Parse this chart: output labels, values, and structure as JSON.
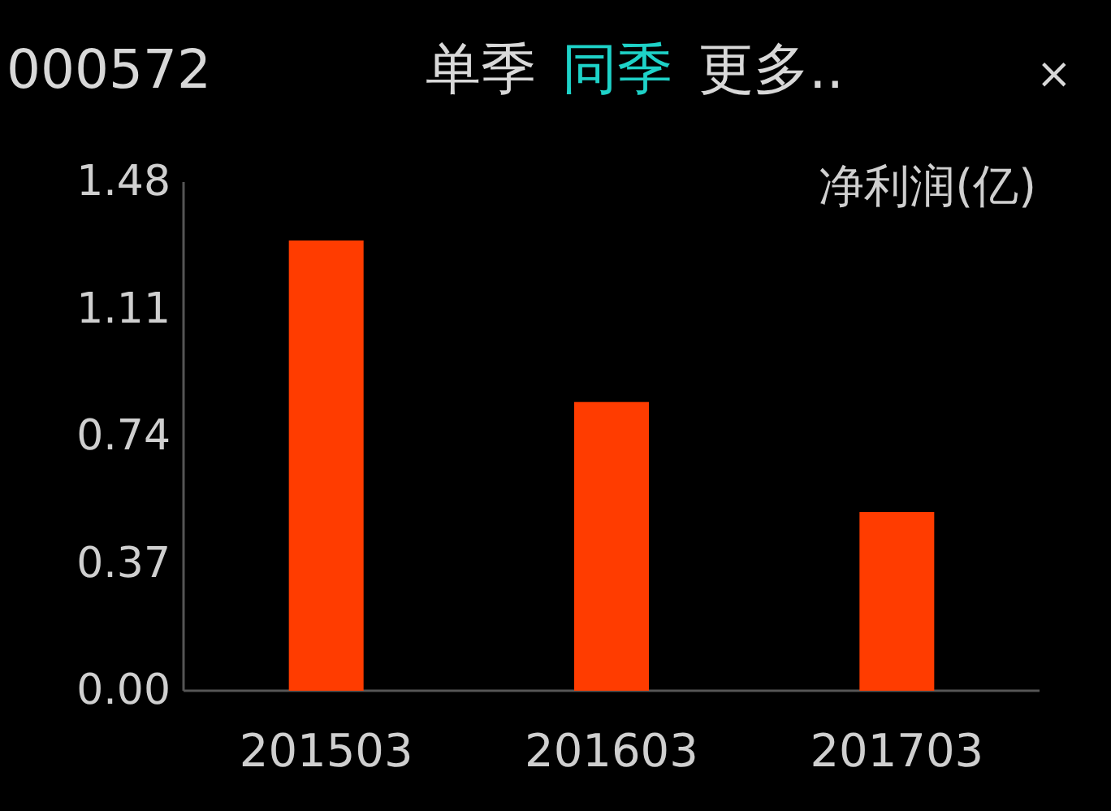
{
  "chart_data": {
    "type": "bar",
    "title": "000572",
    "annotations": [
      "单季",
      "同季",
      "更多..",
      "×"
    ],
    "ylabel": "净利润(亿)",
    "categories": [
      "201503",
      "201603",
      "201703"
    ],
    "values": [
      1.31,
      0.84,
      0.52
    ],
    "color": "#ff3c00",
    "ylim": [
      0,
      1.48
    ],
    "yticks": [
      {
        "value": 0,
        "label": "0.00"
      },
      0.37,
      0.74,
      1.11,
      1.48
    ]
  }
}
